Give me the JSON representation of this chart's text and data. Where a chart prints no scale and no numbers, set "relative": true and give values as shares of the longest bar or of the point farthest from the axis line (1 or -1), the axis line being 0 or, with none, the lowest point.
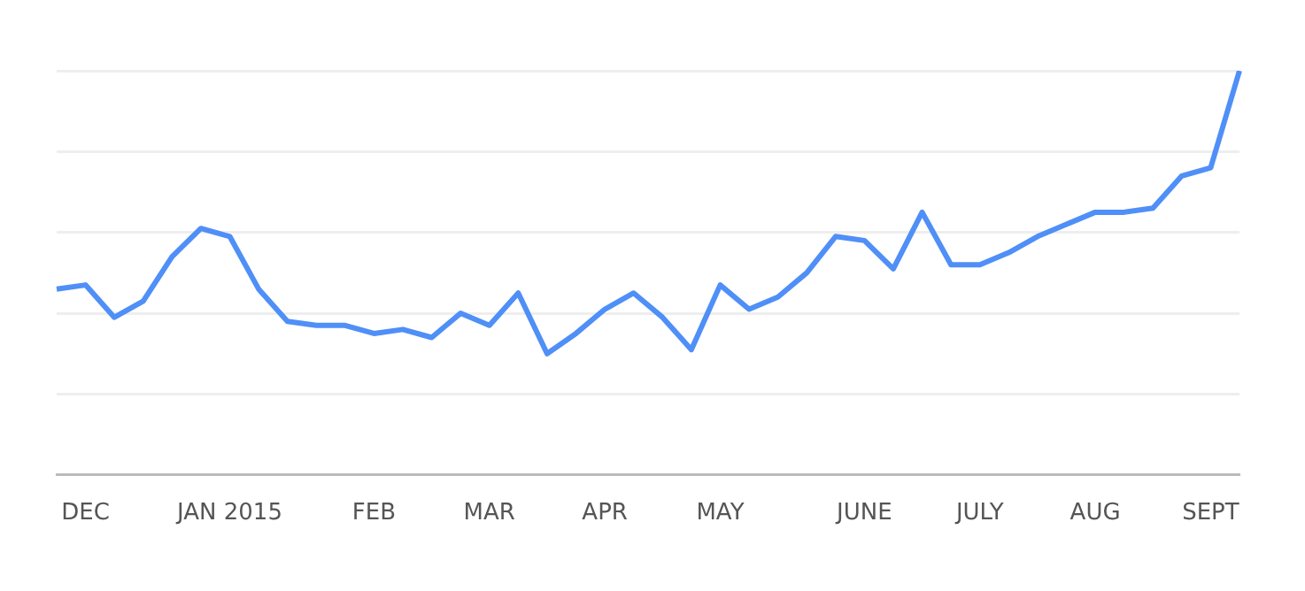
{
  "chart_data": {
    "type": "line",
    "relative": true,
    "grid": "y",
    "legend": false,
    "marker": "none",
    "line_style": "solid",
    "categories": [
      null,
      "DEC",
      null,
      null,
      null,
      null,
      "JAN 2015",
      null,
      null,
      null,
      null,
      "FEB",
      null,
      null,
      null,
      "MAR",
      null,
      null,
      null,
      "APR",
      null,
      null,
      null,
      "MAY",
      null,
      null,
      null,
      null,
      "JUNE",
      null,
      null,
      null,
      "JULY",
      null,
      null,
      null,
      "AUG",
      null,
      null,
      null,
      "SEPT",
      null
    ],
    "series": [
      {
        "color": "#4f8ff7",
        "values": [
          0.46,
          0.47,
          0.39,
          0.43,
          0.54,
          0.61,
          0.59,
          0.46,
          0.38,
          0.37,
          0.37,
          0.35,
          0.36,
          0.34,
          0.4,
          0.37,
          0.45,
          0.3,
          0.35,
          0.41,
          0.45,
          0.39,
          0.31,
          0.47,
          0.41,
          0.44,
          0.5,
          0.59,
          0.58,
          0.51,
          0.65,
          0.52,
          0.52,
          0.55,
          0.59,
          0.62,
          0.65,
          0.65,
          0.66,
          0.74,
          0.76,
          1
        ]
      }
    ]
  }
}
